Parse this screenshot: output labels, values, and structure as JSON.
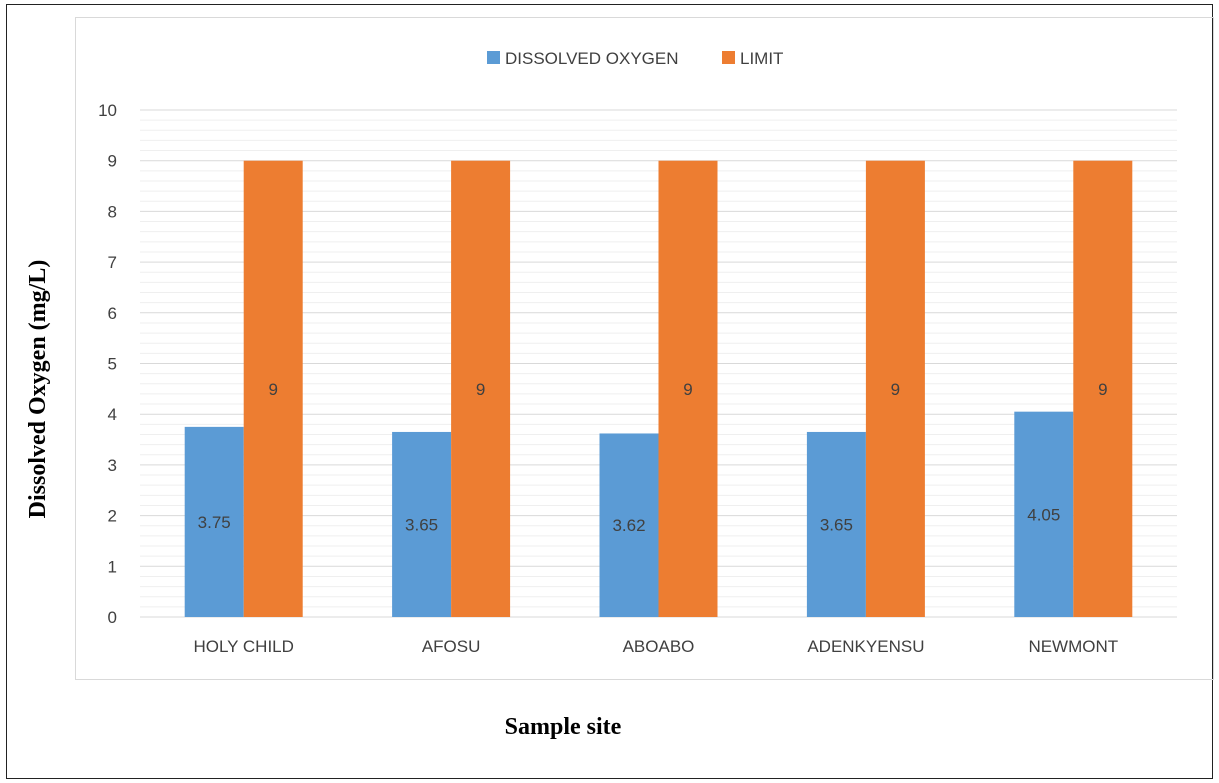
{
  "chart_data": {
    "type": "bar",
    "categories": [
      "HOLY CHILD",
      "AFOSU",
      "ABOABO",
      "ADENKYENSU",
      "NEWMONT"
    ],
    "series": [
      {
        "name": "DISSOLVED OXYGEN",
        "values": [
          3.75,
          3.65,
          3.62,
          3.65,
          4.05
        ],
        "labels": [
          "3.75",
          "3.65",
          "3.62",
          "3.65",
          "4.05"
        ],
        "color": "#5b9bd5"
      },
      {
        "name": "LIMIT",
        "values": [
          9,
          9,
          9,
          9,
          9
        ],
        "labels": [
          "9",
          "9",
          "9",
          "9",
          "9"
        ],
        "color": "#ed7d31"
      }
    ],
    "xlabel": "Sample site",
    "ylabel": "Dissolved Oxygen (mg/L)",
    "ylim": [
      0,
      10
    ],
    "yticks": [
      "0",
      "1",
      "2",
      "3",
      "4",
      "5",
      "6",
      "7",
      "8",
      "9",
      "10"
    ],
    "grid": true,
    "minor_grid": true,
    "legend_position": "top-center"
  }
}
